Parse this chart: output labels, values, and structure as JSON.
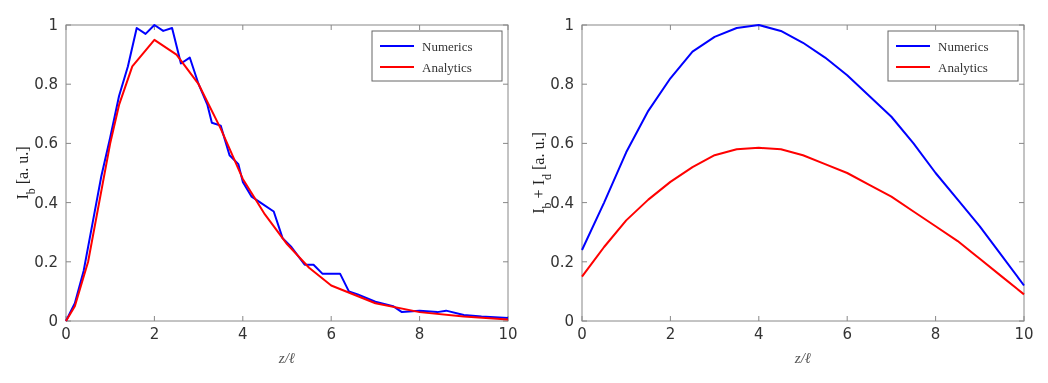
{
  "chart_data": [
    {
      "type": "line",
      "xlabel": "z/ℓ",
      "ylabel": "I$_{b}$ [a. u.]",
      "xlim": [
        0,
        10
      ],
      "ylim": [
        0,
        1
      ],
      "xticks": [
        0,
        2,
        4,
        6,
        8,
        10
      ],
      "yticks": [
        0,
        0.2,
        0.4,
        0.6,
        0.8,
        1
      ],
      "legend": "top right",
      "grid": false,
      "marker": "none",
      "line_style": "solid",
      "series": [
        {
          "name": "Numerics",
          "color": "#0000ff",
          "x": [
            0,
            0.2,
            0.4,
            0.6,
            0.8,
            1.0,
            1.2,
            1.4,
            1.6,
            1.8,
            2.0,
            2.2,
            2.4,
            2.6,
            2.8,
            3.0,
            3.2,
            3.3,
            3.5,
            3.7,
            3.9,
            4.0,
            4.2,
            4.4,
            4.7,
            4.9,
            5.1,
            5.4,
            5.6,
            5.8,
            6.2,
            6.4,
            6.6,
            7.0,
            7.4,
            7.6,
            8.0,
            8.4,
            8.6,
            9.0,
            9.4,
            10
          ],
          "values": [
            0,
            0.06,
            0.17,
            0.33,
            0.49,
            0.62,
            0.76,
            0.86,
            0.99,
            0.97,
            1.0,
            0.98,
            0.99,
            0.87,
            0.89,
            0.8,
            0.73,
            0.67,
            0.66,
            0.56,
            0.53,
            0.47,
            0.42,
            0.4,
            0.37,
            0.28,
            0.25,
            0.19,
            0.19,
            0.16,
            0.16,
            0.1,
            0.09,
            0.065,
            0.05,
            0.03,
            0.035,
            0.03,
            0.035,
            0.02,
            0.015,
            0.01
          ]
        },
        {
          "name": "Analytics",
          "color": "#ff0000",
          "x": [
            0,
            0.2,
            0.5,
            1,
            1.2,
            1.5,
            2,
            2.5,
            3,
            3.5,
            4,
            4.5,
            5,
            5.5,
            6,
            7,
            8,
            9,
            10
          ],
          "values": [
            0,
            0.05,
            0.2,
            0.6,
            0.73,
            0.86,
            0.95,
            0.9,
            0.8,
            0.65,
            0.48,
            0.36,
            0.26,
            0.18,
            0.12,
            0.06,
            0.03,
            0.015,
            0.005
          ]
        }
      ]
    },
    {
      "type": "line",
      "xlabel": "z/ℓ",
      "ylabel": "I$_{b}$ + I$_{d}$ [a. u.]",
      "xlim": [
        0,
        10
      ],
      "ylim": [
        0,
        1
      ],
      "xticks": [
        0,
        2,
        4,
        6,
        8,
        10
      ],
      "yticks": [
        0,
        0.2,
        0.4,
        0.6,
        0.8,
        1
      ],
      "legend": "top right",
      "grid": false,
      "marker": "none",
      "line_style": "solid",
      "series": [
        {
          "name": "Numerics",
          "color": "#0000ff",
          "x": [
            0,
            0.5,
            1,
            1.5,
            2,
            2.5,
            3,
            3.5,
            4,
            4.5,
            5,
            5.5,
            6,
            6.5,
            7,
            7.5,
            8,
            8.5,
            9,
            9.5,
            10
          ],
          "values": [
            0.24,
            0.4,
            0.57,
            0.71,
            0.82,
            0.91,
            0.96,
            0.99,
            1.0,
            0.98,
            0.94,
            0.89,
            0.83,
            0.76,
            0.69,
            0.6,
            0.5,
            0.41,
            0.32,
            0.22,
            0.12
          ]
        },
        {
          "name": "Analytics",
          "color": "#ff0000",
          "x": [
            0,
            0.5,
            1,
            1.5,
            2,
            2.5,
            3,
            3.5,
            4,
            4.5,
            5,
            5.5,
            6,
            6.5,
            7,
            7.5,
            8,
            8.5,
            9,
            9.5,
            10
          ],
          "values": [
            0.15,
            0.25,
            0.34,
            0.41,
            0.47,
            0.52,
            0.56,
            0.58,
            0.585,
            0.58,
            0.56,
            0.53,
            0.5,
            0.46,
            0.42,
            0.37,
            0.32,
            0.27,
            0.21,
            0.15,
            0.09
          ]
        }
      ]
    }
  ]
}
